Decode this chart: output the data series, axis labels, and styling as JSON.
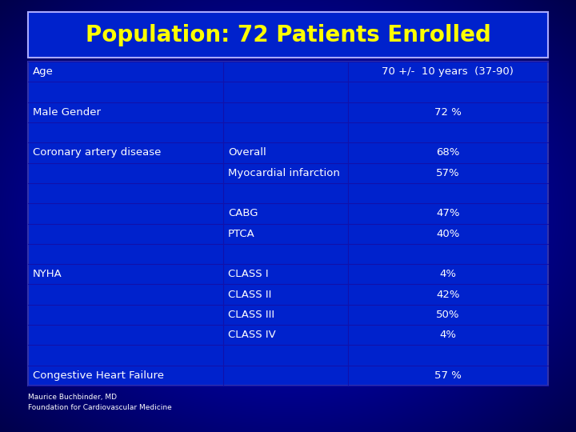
{
  "title": "Population: 72 Patients Enrolled",
  "title_color": "#FFFF00",
  "bg_bright": "#0033FF",
  "bg_dark": "#000066",
  "table_bg": "#0033EE",
  "cell_border_color": "#000099",
  "text_color": "#FFFFFF",
  "value_color": "#FFFF00",
  "footer_text": [
    "Maurice Buchbinder, MD",
    "Foundation for Cardiovascular Medicine"
  ],
  "rows": [
    {
      "col1": "Age",
      "col2": "",
      "col3": "70 +/-  10 years  (37-90)"
    },
    {
      "col1": "",
      "col2": "",
      "col3": ""
    },
    {
      "col1": "Male Gender",
      "col2": "",
      "col3": "72 %"
    },
    {
      "col1": "",
      "col2": "",
      "col3": ""
    },
    {
      "col1": "Coronary artery disease",
      "col2": "Overall",
      "col3": "68%"
    },
    {
      "col1": "",
      "col2": "Myocardial infarction",
      "col3": "57%"
    },
    {
      "col1": "",
      "col2": "",
      "col3": ""
    },
    {
      "col1": "",
      "col2": "CABG",
      "col3": "47%"
    },
    {
      "col1": "",
      "col2": "PTCA",
      "col3": "40%"
    },
    {
      "col1": "",
      "col2": "",
      "col3": ""
    },
    {
      "col1": "NYHA",
      "col2": "CLASS I",
      "col3": "4%"
    },
    {
      "col1": "",
      "col2": "CLASS II",
      "col3": "42%"
    },
    {
      "col1": "",
      "col2": "CLASS III",
      "col3": "50%"
    },
    {
      "col1": "",
      "col2": "CLASS IV",
      "col3": "4%"
    },
    {
      "col1": "",
      "col2": "",
      "col3": ""
    },
    {
      "col1": "Congestive Heart Failure",
      "col2": "",
      "col3": "57 %"
    }
  ],
  "font_size": 9.5,
  "title_font_size": 20,
  "footer_font_size": 6.5
}
